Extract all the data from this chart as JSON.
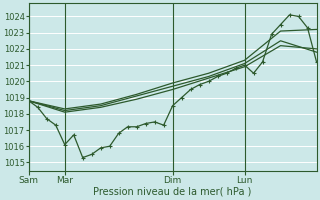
{
  "xlabel": "Pression niveau de la mer( hPa )",
  "bg_color": "#cce8e8",
  "grid_color": "#ffffff",
  "line_color": "#2d5a2d",
  "ylim": [
    1014.5,
    1024.8
  ],
  "yticks": [
    1015,
    1016,
    1017,
    1018,
    1019,
    1020,
    1021,
    1022,
    1023,
    1024
  ],
  "xtick_labels": [
    "Sam",
    "Mar",
    "Dim",
    "Lun"
  ],
  "xtick_positions": [
    0,
    24,
    96,
    144
  ],
  "vline_positions": [
    0,
    24,
    96,
    144
  ],
  "xlim": [
    0,
    192
  ],
  "main_x": [
    0,
    6,
    12,
    18,
    24,
    30,
    36,
    42,
    48,
    54,
    60,
    66,
    72,
    78,
    84,
    90,
    96,
    102,
    108,
    114,
    120,
    126,
    132,
    138,
    144,
    150,
    156,
    162,
    168,
    174,
    180,
    186,
    192
  ],
  "main_y": [
    1018.8,
    1018.4,
    1017.7,
    1017.3,
    1016.1,
    1016.7,
    1015.3,
    1015.5,
    1015.9,
    1016.0,
    1016.8,
    1017.2,
    1017.2,
    1017.4,
    1017.5,
    1017.3,
    1018.5,
    1019.0,
    1019.5,
    1019.8,
    1020.0,
    1020.3,
    1020.5,
    1020.8,
    1021.0,
    1020.5,
    1021.2,
    1022.9,
    1023.5,
    1024.1,
    1024.0,
    1023.3,
    1021.2
  ],
  "smooth1_x": [
    0,
    24,
    48,
    72,
    96,
    120,
    144,
    168,
    192
  ],
  "smooth1_y": [
    1018.8,
    1018.1,
    1018.4,
    1018.9,
    1019.5,
    1020.2,
    1020.9,
    1022.2,
    1022.0
  ],
  "smooth2_x": [
    0,
    24,
    48,
    72,
    96,
    120,
    144,
    168,
    192
  ],
  "smooth2_y": [
    1018.8,
    1018.2,
    1018.5,
    1019.1,
    1019.7,
    1020.3,
    1021.1,
    1022.5,
    1021.8
  ],
  "smooth3_x": [
    0,
    24,
    48,
    72,
    96,
    120,
    144,
    168,
    192
  ],
  "smooth3_y": [
    1018.8,
    1018.3,
    1018.6,
    1019.2,
    1019.9,
    1020.5,
    1021.3,
    1023.1,
    1023.2
  ]
}
